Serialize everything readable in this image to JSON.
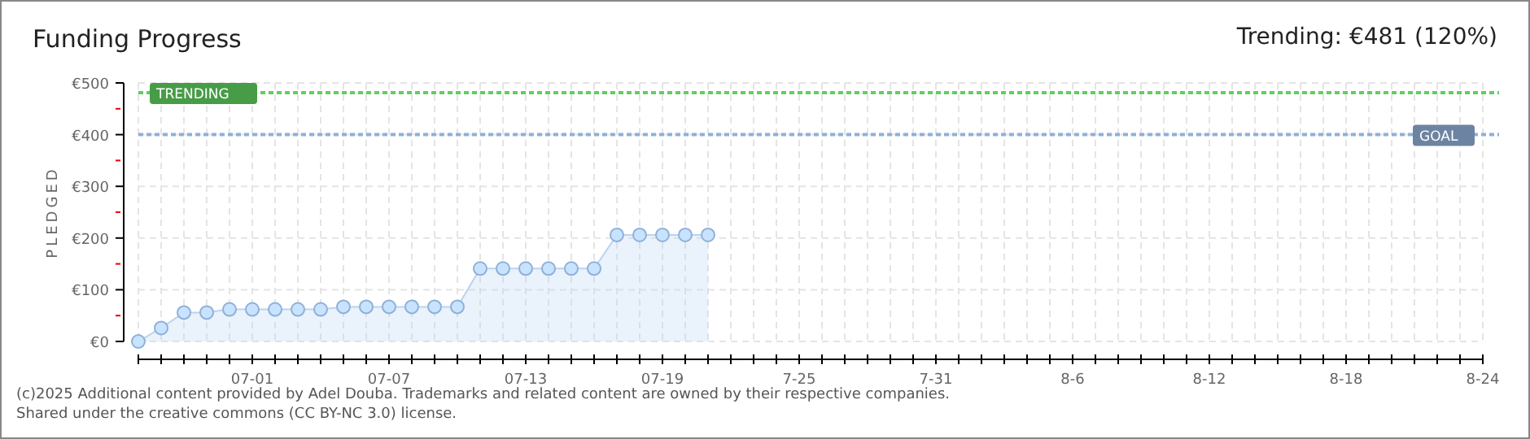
{
  "chart_data": {
    "type": "area",
    "title": "Funding Progress",
    "subtitle": "Trending: €481 (120%)",
    "ylabel": "PLEDGED",
    "x": [
      "--06-26",
      "--06-27",
      "--06-28",
      "--06-29",
      "--06-30",
      "--07-01",
      "--07-02",
      "--07-03",
      "--07-04",
      "--07-05",
      "--07-06",
      "--07-07",
      "--07-08",
      "--07-09",
      "--07-10",
      "--07-11",
      "--07-12",
      "--07-13",
      "--07-14",
      "--07-15",
      "--07-16",
      "--07-17",
      "--07-18",
      "--07-19",
      "--07-20",
      "--07-21"
    ],
    "series": [
      {
        "color": "#b9d3f1",
        "values": [
          0,
          26,
          56,
          56,
          62,
          62,
          62,
          62,
          62,
          67,
          67,
          67,
          67,
          67,
          67,
          141,
          141,
          141,
          141,
          141,
          141,
          206,
          206,
          206,
          206,
          206
        ]
      }
    ],
    "xlim": [
      "--06-26",
      "--08-24"
    ],
    "xticks": [
      {
        "value": "--06-26",
        "label": null
      },
      {
        "value": "--06-27",
        "label": null
      },
      {
        "value": "--06-28",
        "label": null
      },
      {
        "value": "--06-29",
        "label": null
      },
      {
        "value": "--06-30",
        "label": null
      },
      {
        "value": "--07-01",
        "label": "07-01"
      },
      {
        "value": "--07-02",
        "label": null
      },
      {
        "value": "--07-03",
        "label": null
      },
      {
        "value": "--07-04",
        "label": null
      },
      {
        "value": "--07-05",
        "label": null
      },
      {
        "value": "--07-06",
        "label": null
      },
      {
        "value": "--07-07",
        "label": "07-07"
      },
      {
        "value": "--07-08",
        "label": null
      },
      {
        "value": "--07-09",
        "label": null
      },
      {
        "value": "--07-10",
        "label": null
      },
      {
        "value": "--07-11",
        "label": null
      },
      {
        "value": "--07-12",
        "label": null
      },
      {
        "value": "--07-13",
        "label": "07-13"
      },
      {
        "value": "--07-14",
        "label": null
      },
      {
        "value": "--07-15",
        "label": null
      },
      {
        "value": "--07-16",
        "label": null
      },
      {
        "value": "--07-17",
        "label": null
      },
      {
        "value": "--07-18",
        "label": null
      },
      {
        "value": "--07-19",
        "label": "07-19"
      },
      {
        "value": "--07-20",
        "label": null
      },
      {
        "value": "--07-21",
        "label": null
      },
      {
        "value": "--07-22",
        "label": null
      },
      {
        "value": "--07-23",
        "label": null
      },
      {
        "value": "--07-24",
        "label": null
      },
      {
        "value": "--07-25",
        "label": "7-25"
      },
      {
        "value": "--07-26",
        "label": null
      },
      {
        "value": "--07-27",
        "label": null
      },
      {
        "value": "--07-28",
        "label": null
      },
      {
        "value": "--07-29",
        "label": null
      },
      {
        "value": "--07-30",
        "label": null
      },
      {
        "value": "--07-31",
        "label": "7-31"
      },
      {
        "value": "--08-01",
        "label": null
      },
      {
        "value": "--08-02",
        "label": null
      },
      {
        "value": "--08-03",
        "label": null
      },
      {
        "value": "--08-04",
        "label": null
      },
      {
        "value": "--08-05",
        "label": null
      },
      {
        "value": "--08-06",
        "label": "8-6"
      },
      {
        "value": "--08-07",
        "label": null
      },
      {
        "value": "--08-08",
        "label": null
      },
      {
        "value": "--08-09",
        "label": null
      },
      {
        "value": "--08-10",
        "label": null
      },
      {
        "value": "--08-11",
        "label": null
      },
      {
        "value": "--08-12",
        "label": "8-12"
      },
      {
        "value": "--08-13",
        "label": null
      },
      {
        "value": "--08-14",
        "label": null
      },
      {
        "value": "--08-15",
        "label": null
      },
      {
        "value": "--08-16",
        "label": null
      },
      {
        "value": "--08-17",
        "label": null
      },
      {
        "value": "--08-18",
        "label": "8-18"
      },
      {
        "value": "--08-19",
        "label": null
      },
      {
        "value": "--08-20",
        "label": null
      },
      {
        "value": "--08-21",
        "label": null
      },
      {
        "value": "--08-22",
        "label": null
      },
      {
        "value": "--08-23",
        "label": null
      },
      {
        "value": "--08-24",
        "label": "8-24"
      }
    ],
    "ylim": [
      0,
      500
    ],
    "yticks": [
      {
        "value": 0,
        "label": "€0"
      },
      {
        "value": 50,
        "label": null
      },
      {
        "value": 100,
        "label": "€100"
      },
      {
        "value": 150,
        "label": null
      },
      {
        "value": 200,
        "label": "€200"
      },
      {
        "value": 250,
        "label": null
      },
      {
        "value": 300,
        "label": "€300"
      },
      {
        "value": 350,
        "label": null
      },
      {
        "value": 400,
        "label": "€400"
      },
      {
        "value": 450,
        "label": null
      },
      {
        "value": 500,
        "label": "€500"
      }
    ],
    "grid": true,
    "marker": "circle",
    "line_style": "solid",
    "ref_lines": [
      {
        "axis": "y",
        "value": 481,
        "label": "TRENDING",
        "color": "#5fcf5f",
        "line_style": "dotted"
      },
      {
        "axis": "y",
        "value": 400,
        "label": "GOAL",
        "color": "#8fb0d8",
        "line_style": "dotted"
      }
    ],
    "annotations": [
      "(c)2025 Additional content provided by Adel Douba. Trademarks and related content are owned by their respective companies.",
      "Shared under the creative commons (CC BY-NC 3.0) license."
    ]
  }
}
